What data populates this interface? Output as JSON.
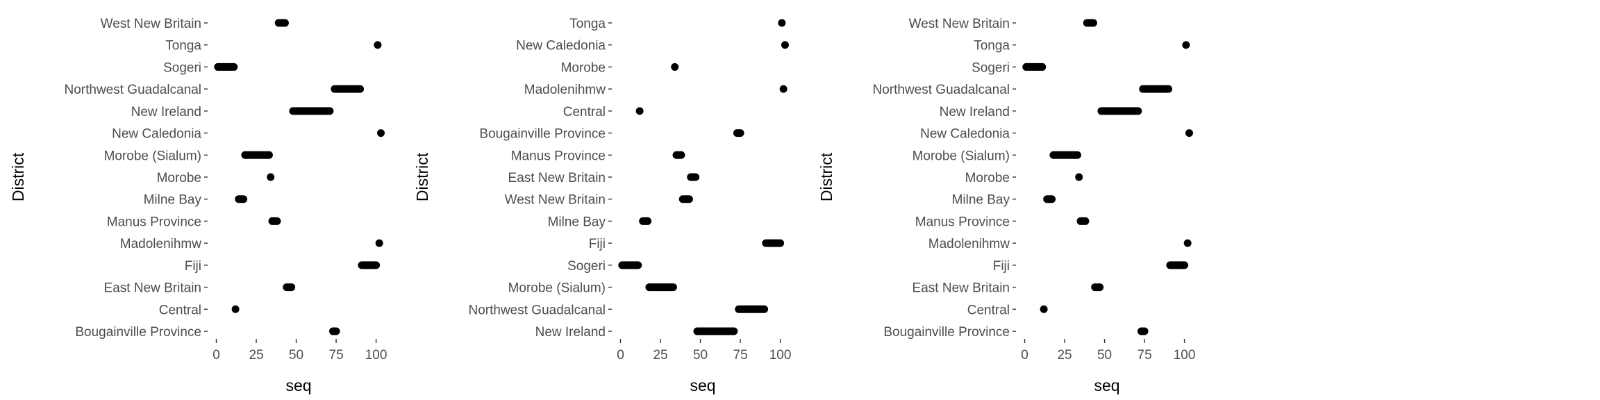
{
  "chart_data": [
    {
      "type": "scatter",
      "xlabel": "seq",
      "ylabel": "District",
      "xlim": [
        -5,
        108
      ],
      "xticks": [
        0,
        25,
        50,
        75,
        100
      ],
      "grid": false,
      "categories": [
        "Bougainville Province",
        "Central",
        "East New Britain",
        "Fiji",
        "Madolenihmw",
        "Manus Province",
        "Milne Bay",
        "Morobe",
        "Morobe (Sialum)",
        "New Caledonia",
        "New Ireland",
        "Northwest Guadalcanal",
        "Sogeri",
        "Tonga",
        "West New Britain"
      ],
      "ranges": [
        [
          73,
          75
        ],
        [
          12,
          12
        ],
        [
          44,
          47
        ],
        [
          91,
          100
        ],
        [
          102,
          102
        ],
        [
          35,
          38
        ],
        [
          14,
          17
        ],
        [
          34,
          34
        ],
        [
          18,
          33
        ],
        [
          103,
          103
        ],
        [
          48,
          71
        ],
        [
          74,
          90
        ],
        [
          1,
          11
        ],
        [
          101,
          101
        ],
        [
          39,
          43
        ]
      ]
    },
    {
      "type": "scatter",
      "xlabel": "seq",
      "ylabel": "District",
      "xlim": [
        -5,
        108
      ],
      "xticks": [
        0,
        25,
        50,
        75,
        100
      ],
      "grid": false,
      "categories": [
        "New Ireland",
        "Northwest Guadalcanal",
        "Morobe (Sialum)",
        "Sogeri",
        "Fiji",
        "Milne Bay",
        "West New Britain",
        "East New Britain",
        "Manus Province",
        "Bougainville Province",
        "Central",
        "Madolenihmw",
        "Morobe",
        "New Caledonia",
        "Tonga"
      ],
      "ranges": [
        [
          48,
          71
        ],
        [
          74,
          90
        ],
        [
          18,
          33
        ],
        [
          1,
          11
        ],
        [
          91,
          100
        ],
        [
          14,
          17
        ],
        [
          39,
          43
        ],
        [
          44,
          47
        ],
        [
          35,
          38
        ],
        [
          73,
          75
        ],
        [
          12,
          12
        ],
        [
          102,
          102
        ],
        [
          34,
          34
        ],
        [
          103,
          103
        ],
        [
          101,
          101
        ]
      ]
    },
    {
      "type": "scatter",
      "xlabel": "seq",
      "ylabel": "District",
      "xlim": [
        -5,
        108
      ],
      "xticks": [
        0,
        25,
        50,
        75,
        100
      ],
      "grid": false,
      "categories": [
        "Bougainville Province",
        "Central",
        "East New Britain",
        "Fiji",
        "Madolenihmw",
        "Manus Province",
        "Milne Bay",
        "Morobe",
        "Morobe (Sialum)",
        "New Caledonia",
        "New Ireland",
        "Northwest Guadalcanal",
        "Sogeri",
        "Tonga",
        "West New Britain"
      ],
      "ranges": [
        [
          73,
          75
        ],
        [
          12,
          12
        ],
        [
          44,
          47
        ],
        [
          91,
          100
        ],
        [
          102,
          102
        ],
        [
          35,
          38
        ],
        [
          14,
          17
        ],
        [
          34,
          34
        ],
        [
          18,
          33
        ],
        [
          103,
          103
        ],
        [
          48,
          71
        ],
        [
          74,
          90
        ],
        [
          1,
          11
        ],
        [
          101,
          101
        ],
        [
          39,
          43
        ]
      ]
    }
  ]
}
